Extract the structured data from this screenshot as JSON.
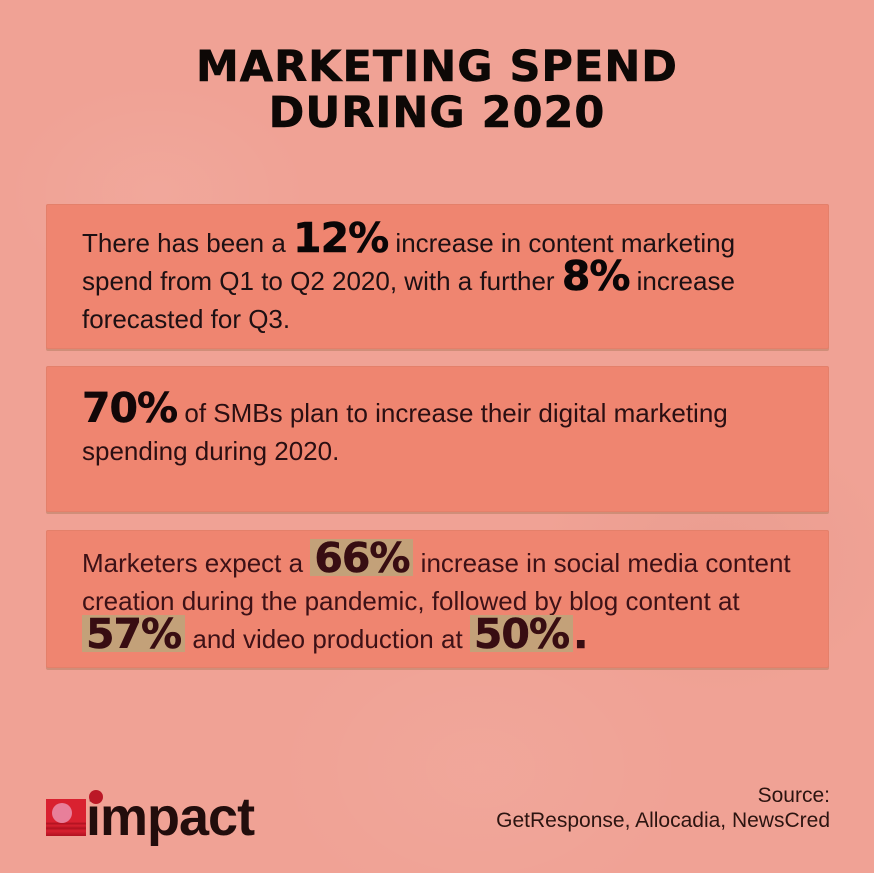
{
  "page": {
    "title_line1": "MARKETING SPEND",
    "title_line2": "DURING 2020"
  },
  "cards": [
    {
      "text_color": "#1d1013",
      "stat_color": "#0a0607",
      "segments": [
        {
          "t": "There has been a ",
          "s": "body"
        },
        {
          "t": "12%",
          "s": "stat"
        },
        {
          "t": " increase in content marketing",
          "s": "body"
        },
        {
          "br": true
        },
        {
          "t": "spend from Q1 to Q2 2020, with a further ",
          "s": "body"
        },
        {
          "t": "8%",
          "s": "stat"
        },
        {
          "t": " increase",
          "s": "body"
        },
        {
          "br": true
        },
        {
          "t": "forecasted for Q3.",
          "s": "body"
        }
      ]
    },
    {
      "text_color": "#2a0f12",
      "stat_color": "#120708",
      "segments": [
        {
          "t": "70%",
          "s": "stat"
        },
        {
          "t": " of SMBs plan to increase their digital marketing",
          "s": "body"
        },
        {
          "br": true
        },
        {
          "t": "spending during 2020.",
          "s": "body"
        }
      ]
    },
    {
      "text_color": "#3d1116",
      "stat_color": "#380d12",
      "highlight_color": "#c3a179",
      "segments": [
        {
          "t": "Marketers expect a ",
          "s": "body"
        },
        {
          "t": "66%",
          "s": "stat-hl"
        },
        {
          "t": " increase in social media content",
          "s": "body"
        },
        {
          "br": true
        },
        {
          "t": "creation during the pandemic, followed by blog content at",
          "s": "body"
        },
        {
          "br": true
        },
        {
          "t": "57%",
          "s": "stat-hl"
        },
        {
          "t": " and video production at ",
          "s": "body"
        },
        {
          "t": "50%",
          "s": "stat-hl"
        },
        {
          "t": ".",
          "s": "stat"
        }
      ]
    }
  ],
  "footer": {
    "logo_word": "impact",
    "source_label": "Source:",
    "source_value": "GetResponse, Allocadia, NewsCred"
  },
  "colors": {
    "background": "#f0a295",
    "card_background": "#ef8570",
    "title_text": "#0d0806",
    "logo_square_red": "#d92130",
    "logo_square_stripe": "#b01220",
    "logo_circle_pink": "#e87f9a",
    "logo_dot_red": "#bb1826",
    "logo_text": "#220d0c",
    "source_text": "#2c1410"
  }
}
